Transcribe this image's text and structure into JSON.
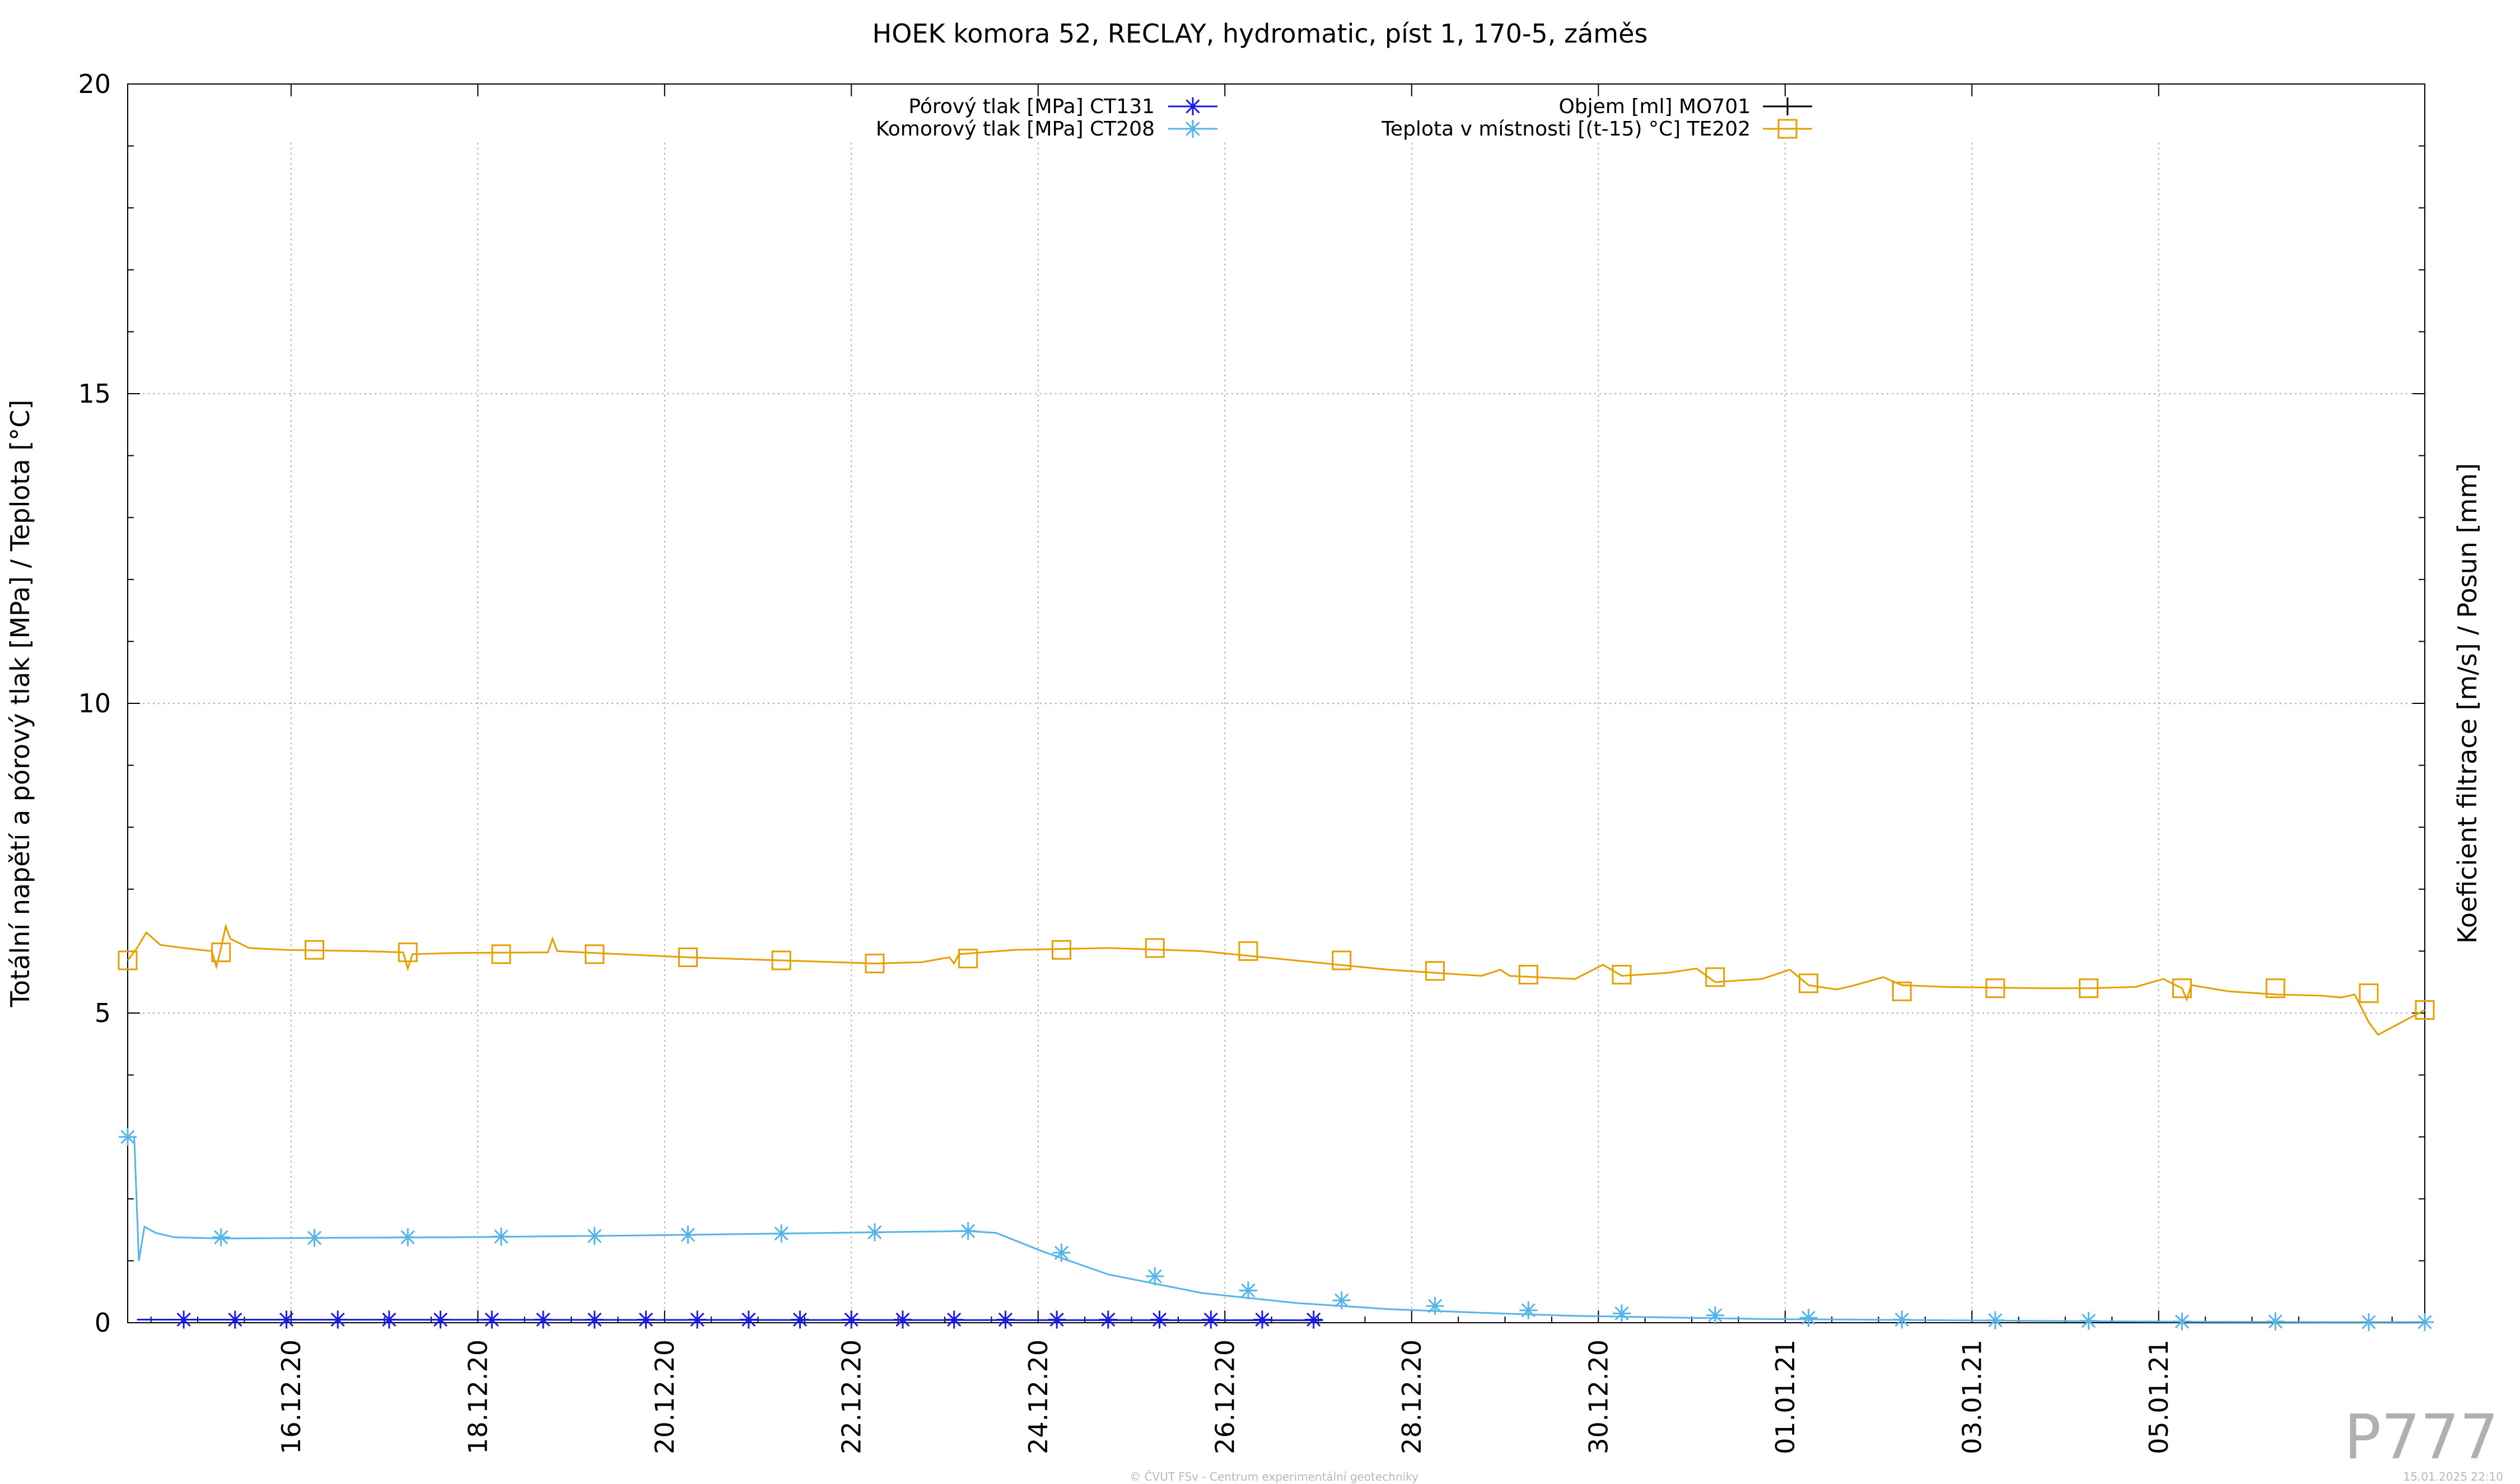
{
  "chart_data": {
    "type": "line",
    "title": "HOEK komora 52, RECLAY, hydromatic, píst 1, 170-5, záměs",
    "ylabel": "Totální napětí a pórový tlak [MPa] / Teplota [°C]",
    "y2label": "Koeficient filtrace [m/s] / Posun [mm]",
    "ylim": [
      0,
      20
    ],
    "yticks": [
      0,
      5,
      10,
      15,
      20
    ],
    "xlim": [
      14.5,
      39.1
    ],
    "xticks": [
      {
        "x": 16.25,
        "label": "16.12.20"
      },
      {
        "x": 18.25,
        "label": "18.12.20"
      },
      {
        "x": 20.25,
        "label": "20.12.20"
      },
      {
        "x": 22.25,
        "label": "22.12.20"
      },
      {
        "x": 24.25,
        "label": "24.12.20"
      },
      {
        "x": 26.25,
        "label": "26.12.20"
      },
      {
        "x": 28.25,
        "label": "28.12.20"
      },
      {
        "x": 30.25,
        "label": "30.12.20"
      },
      {
        "x": 32.25,
        "label": "01.01.21"
      },
      {
        "x": 34.25,
        "label": "03.01.21"
      },
      {
        "x": 36.25,
        "label": "05.01.21"
      }
    ],
    "x_unit_note": "x values are days of December 2020 (32 = 1 Jan 2021)",
    "grid": true,
    "legend_placement": "top",
    "series": [
      {
        "name": "Pórový tlak [MPa] CT131",
        "color": "#1a1ae6",
        "marker": "star",
        "x": [
          14.6,
          15.1,
          27.3
        ],
        "y": [
          0.05,
          0.05,
          0.04
        ],
        "markers_x": [
          15.1,
          15.65,
          16.2,
          16.75,
          17.3,
          17.85,
          18.4,
          18.95,
          19.5,
          20.05,
          20.6,
          21.15,
          21.7,
          22.25,
          22.8,
          23.35,
          23.9,
          24.45,
          25.0,
          25.55,
          26.1,
          26.65,
          27.2
        ],
        "markers_y": [
          0.05,
          0.05,
          0.05,
          0.05,
          0.05,
          0.05,
          0.05,
          0.05,
          0.05,
          0.05,
          0.05,
          0.05,
          0.05,
          0.05,
          0.05,
          0.05,
          0.05,
          0.05,
          0.05,
          0.05,
          0.05,
          0.05,
          0.05
        ]
      },
      {
        "name": "Komorový tlak [MPa] CT208",
        "color": "#56b4e9",
        "marker": "asterisk",
        "x": [
          14.5,
          14.57,
          14.62,
          14.68,
          14.8,
          15.0,
          15.5,
          16.5,
          18.0,
          20.0,
          22.0,
          23.5,
          23.8,
          24.3,
          25.0,
          26.0,
          27.0,
          28.0,
          29.0,
          30.0,
          32.0,
          34.0,
          36.0,
          38.0,
          39.1
        ],
        "y": [
          3.0,
          3.0,
          1.0,
          1.55,
          1.45,
          1.38,
          1.36,
          1.37,
          1.38,
          1.41,
          1.45,
          1.48,
          1.45,
          1.15,
          0.78,
          0.48,
          0.32,
          0.22,
          0.16,
          0.11,
          0.06,
          0.04,
          0.02,
          0.01,
          0.01
        ],
        "markers_x": [
          14.5,
          15.5,
          16.5,
          17.5,
          18.5,
          19.5,
          20.5,
          21.5,
          22.5,
          23.5,
          24.5,
          25.5,
          26.5,
          27.5,
          28.5,
          29.5,
          30.5,
          31.5,
          32.5,
          33.5,
          34.5,
          35.5,
          36.5,
          37.5,
          38.5,
          39.1
        ],
        "markers_y": [
          3.0,
          1.38,
          1.37,
          1.38,
          1.39,
          1.4,
          1.42,
          1.44,
          1.46,
          1.48,
          1.13,
          0.75,
          0.52,
          0.36,
          0.27,
          0.2,
          0.15,
          0.12,
          0.08,
          0.05,
          0.04,
          0.03,
          0.02,
          0.02,
          0.01,
          0.01
        ]
      },
      {
        "name": "Objem [ml] MO701",
        "color": "#000000",
        "marker": "plus",
        "x": [],
        "y": []
      },
      {
        "name": "Teplota v místnosti [(t-15) °C] TE202",
        "color": "#e69f00",
        "marker": "square",
        "x": [
          14.5,
          14.6,
          14.7,
          14.85,
          15.1,
          15.4,
          15.45,
          15.5,
          15.55,
          15.6,
          15.8,
          16.2,
          17.0,
          17.45,
          17.5,
          17.55,
          18.0,
          19.0,
          19.05,
          19.1,
          19.5,
          20.5,
          21.5,
          22.5,
          23.0,
          23.3,
          23.35,
          23.4,
          24.0,
          25.0,
          26.0,
          27.0,
          28.0,
          29.0,
          29.2,
          29.3,
          30.0,
          30.3,
          30.5,
          31.0,
          31.3,
          31.5,
          32.0,
          32.3,
          32.5,
          32.8,
          33.0,
          33.3,
          33.5,
          34.0,
          35.0,
          35.5,
          36.0,
          36.3,
          36.5,
          36.55,
          36.6,
          37.0,
          37.5,
          38.0,
          38.2,
          38.35,
          38.5,
          38.6,
          39.1
        ],
        "y": [
          5.85,
          6.05,
          6.3,
          6.1,
          6.05,
          6.0,
          5.75,
          6.05,
          6.4,
          6.2,
          6.05,
          6.02,
          6.0,
          5.98,
          5.72,
          5.95,
          5.97,
          5.98,
          6.2,
          6.0,
          5.97,
          5.9,
          5.85,
          5.8,
          5.82,
          5.9,
          5.8,
          5.95,
          6.02,
          6.05,
          6.0,
          5.85,
          5.7,
          5.6,
          5.7,
          5.6,
          5.55,
          5.78,
          5.6,
          5.65,
          5.72,
          5.5,
          5.55,
          5.7,
          5.45,
          5.38,
          5.45,
          5.58,
          5.45,
          5.42,
          5.4,
          5.4,
          5.42,
          5.55,
          5.4,
          5.22,
          5.45,
          5.35,
          5.3,
          5.28,
          5.25,
          5.3,
          4.85,
          4.65,
          5.05
        ],
        "markers_x": [
          14.5,
          15.5,
          16.5,
          17.5,
          18.5,
          19.5,
          20.5,
          21.5,
          22.5,
          23.5,
          24.5,
          25.5,
          26.5,
          27.5,
          28.5,
          29.5,
          30.5,
          31.5,
          32.5,
          33.5,
          34.5,
          35.5,
          36.5,
          37.5,
          38.5,
          39.1
        ],
        "markers_y": [
          5.85,
          5.98,
          6.02,
          5.98,
          5.95,
          5.95,
          5.9,
          5.85,
          5.8,
          5.88,
          6.02,
          6.05,
          6.0,
          5.85,
          5.68,
          5.62,
          5.62,
          5.58,
          5.48,
          5.35,
          5.4,
          5.4,
          5.4,
          5.4,
          5.32,
          5.05
        ]
      }
    ]
  },
  "stamp": "P777",
  "footer_center": "© ČVUT FSv - Centrum experimentální geotechniky",
  "footer_right": "15.01.2025 22:10"
}
